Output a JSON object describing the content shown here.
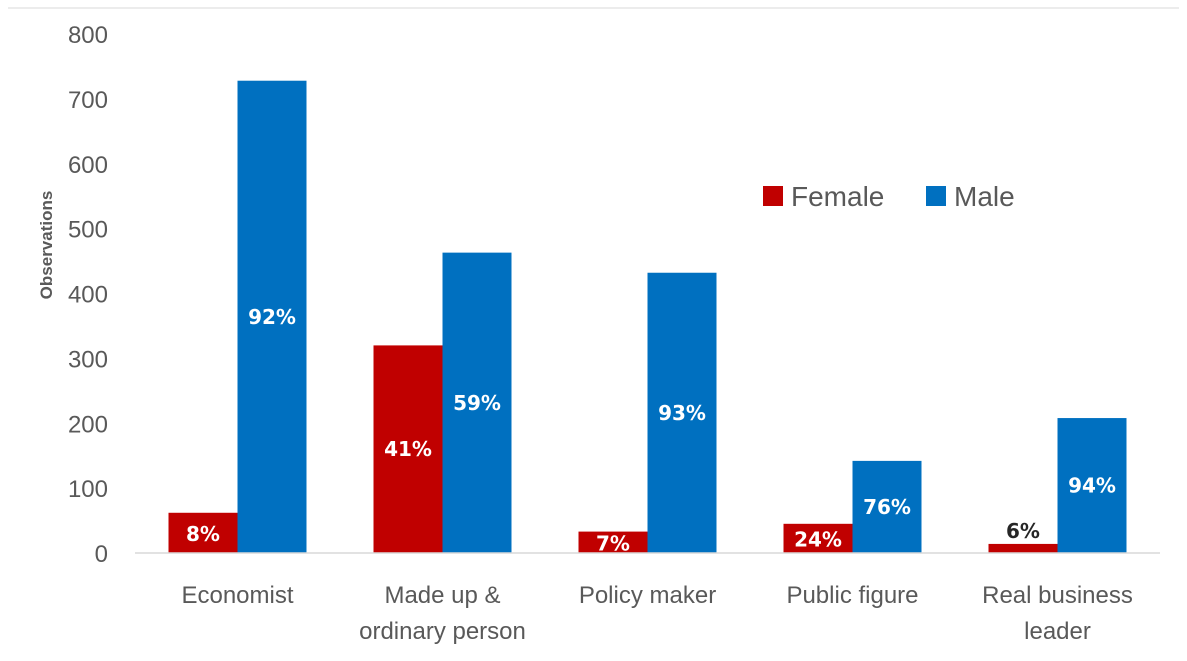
{
  "chart_data": {
    "type": "bar",
    "title": "",
    "xlabel": "",
    "ylabel": "Observations",
    "ylim": [
      0,
      800
    ],
    "yticks": [
      0,
      100,
      200,
      300,
      400,
      500,
      600,
      700,
      800
    ],
    "grid": false,
    "legend_position": "upper-right",
    "categories": [
      [
        "Economist"
      ],
      [
        "Made up &",
        "ordinary person"
      ],
      [
        "Policy maker"
      ],
      [
        "Public figure"
      ],
      [
        "Real business",
        "leader"
      ]
    ],
    "series": [
      {
        "name": "Female",
        "color": "#C00000",
        "values": [
          62,
          320,
          33,
          45,
          14
        ],
        "labels": [
          "8%",
          "41%",
          "7%",
          "24%",
          "6%"
        ]
      },
      {
        "name": "Male",
        "color": "#0070C0",
        "values": [
          728,
          463,
          432,
          142,
          208
        ],
        "labels": [
          "92%",
          "59%",
          "93%",
          "76%",
          "94%"
        ]
      }
    ]
  }
}
